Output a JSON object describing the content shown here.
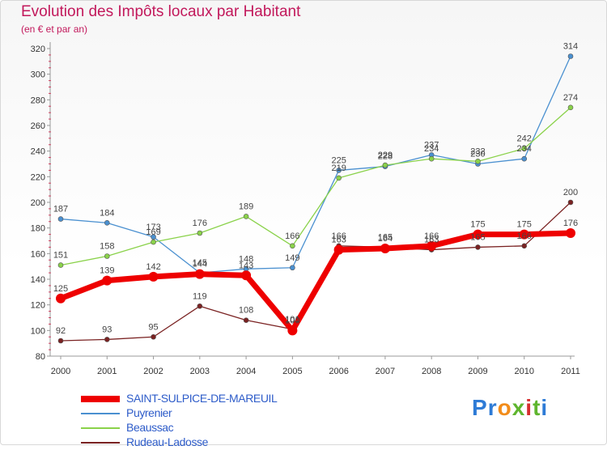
{
  "title": "Evolution des Impôts locaux par Habitant",
  "subtitle": "(en € et par an)",
  "logo": {
    "text": "Proxiti",
    "letter_colors": [
      "#2e7bd6",
      "#2e7bd6",
      "#f28c1a",
      "#5fb52e",
      "#d62e2e",
      "#5fb52e",
      "#2e7bd6"
    ]
  },
  "chart_data": {
    "type": "line",
    "title": "Evolution des Impôts locaux par Habitant",
    "subtitle": "(en € et par an)",
    "xlabel": "",
    "ylabel": "",
    "x": [
      "2000",
      "2001",
      "2002",
      "2003",
      "2004",
      "2005",
      "2006",
      "2007",
      "2008",
      "2009",
      "2010",
      "2011"
    ],
    "ylim": [
      80,
      320
    ],
    "yticks": [
      80,
      100,
      120,
      140,
      160,
      180,
      200,
      220,
      240,
      260,
      280,
      300,
      320
    ],
    "grid": false,
    "legend_position": "bottom-left",
    "series": [
      {
        "name": "SAINT-SULPICE-DE-MAREUIL",
        "color": "#ee0000",
        "values": [
          125,
          139,
          142,
          144,
          143,
          100,
          163,
          164,
          166,
          175,
          175,
          176
        ]
      },
      {
        "name": "Puyrenier",
        "color": "#4a90d0",
        "values": [
          187,
          184,
          173,
          145,
          148,
          149,
          225,
          228,
          237,
          230,
          234,
          314
        ]
      },
      {
        "name": "Beaussac",
        "color": "#8ad24a",
        "values": [
          151,
          158,
          169,
          176,
          189,
          166,
          219,
          229,
          234,
          232,
          242,
          274
        ]
      },
      {
        "name": "Rudeau-Ladosse",
        "color": "#7a2222",
        "values": [
          92,
          93,
          95,
          119,
          108,
          101,
          166,
          165,
          163,
          165,
          166,
          200
        ]
      }
    ]
  }
}
